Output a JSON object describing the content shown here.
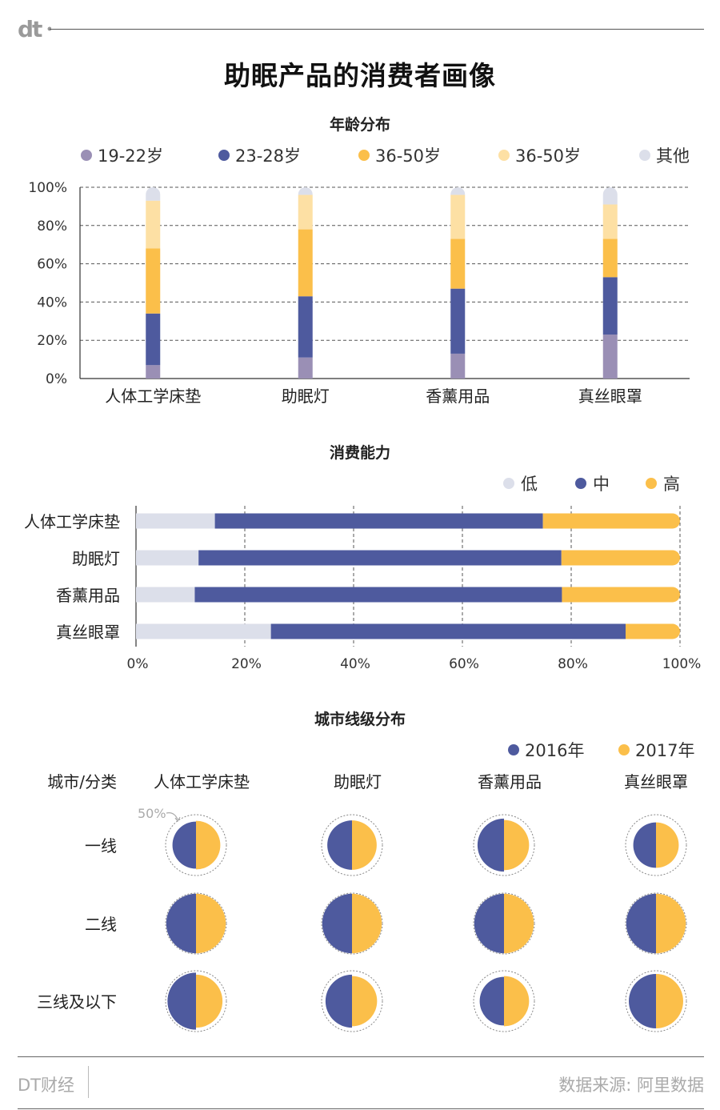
{
  "header": {
    "logo_text": "dt",
    "title": "助眠产品的消费者画像"
  },
  "colors": {
    "age_19_22": "#9a8fb5",
    "age_23_28": "#4e5a9e",
    "age_36_50a": "#fbbf4a",
    "age_36_50b": "#fde0a4",
    "age_other": "#dcdfea",
    "low": "#dcdfea",
    "mid": "#4e5a9e",
    "high": "#fbbf4a",
    "y2016": "#4e5a9e",
    "y2017": "#fbbf4a"
  },
  "chart_data": [
    {
      "type": "bar",
      "stacked": true,
      "orientation": "vertical",
      "title": "年龄分布",
      "categories": [
        "人体工学床垫",
        "助眠灯",
        "香薰用品",
        "真丝眼罩"
      ],
      "y_ticks": [
        "0%",
        "20%",
        "40%",
        "60%",
        "80%",
        "100%"
      ],
      "ylim": [
        0,
        100
      ],
      "grid": true,
      "legend_position": "top",
      "series": [
        {
          "name": "19-22岁",
          "color": "#9a8fb5",
          "values": [
            7,
            11,
            13,
            23
          ]
        },
        {
          "name": "23-28岁",
          "color": "#4e5a9e",
          "values": [
            27,
            32,
            34,
            30
          ]
        },
        {
          "name": "36-50岁",
          "color": "#fbbf4a",
          "values": [
            34,
            35,
            26,
            20
          ]
        },
        {
          "name": "36-50岁",
          "color": "#fde0a4",
          "values": [
            25,
            18,
            23,
            18
          ]
        },
        {
          "name": "其他",
          "color": "#dcdfea",
          "values": [
            7,
            4,
            4,
            9
          ]
        }
      ]
    },
    {
      "type": "bar",
      "stacked": true,
      "orientation": "horizontal",
      "title": "消费能力",
      "categories": [
        "人体工学床垫",
        "助眠灯",
        "香薰用品",
        "真丝眼罩"
      ],
      "x_ticks": [
        "0%",
        "20%",
        "40%",
        "60%",
        "80%",
        "100%"
      ],
      "xlim": [
        0,
        100
      ],
      "grid": true,
      "legend_position": "top-right",
      "series": [
        {
          "name": "低",
          "color": "#dcdfea",
          "values": [
            14.5,
            11.5,
            10.8,
            24.8
          ]
        },
        {
          "name": "中",
          "color": "#4e5a9e",
          "values": [
            60.3,
            66.7,
            67.5,
            65.2
          ]
        },
        {
          "name": "高",
          "color": "#fbbf4a",
          "values": [
            25.2,
            21.8,
            21.7,
            10.0
          ]
        }
      ]
    },
    {
      "type": "pie",
      "title": "城市线级分布",
      "corner_label": "城市/分类",
      "reference_label": "50%",
      "columns": [
        "人体工学床垫",
        "助眠灯",
        "香薰用品",
        "真丝眼罩"
      ],
      "rows": [
        "一线",
        "二线",
        "三线及以下"
      ],
      "legend_position": "top-right",
      "series": [
        {
          "name": "2016年",
          "color": "#4e5a9e",
          "values": [
            [
              30,
              33,
              38,
              28
            ],
            [
              48,
              48,
              48,
              48
            ],
            [
              44,
              38,
              32,
              40
            ]
          ]
        },
        {
          "name": "2017年",
          "color": "#fbbf4a",
          "values": [
            [
              32,
              33,
              34,
              28
            ],
            [
              48,
              48,
              48,
              48
            ],
            [
              38,
              34,
              34,
              40
            ]
          ]
        }
      ]
    }
  ],
  "footer": {
    "brand": "DT财经",
    "source": "数据来源: 阿里数据"
  }
}
